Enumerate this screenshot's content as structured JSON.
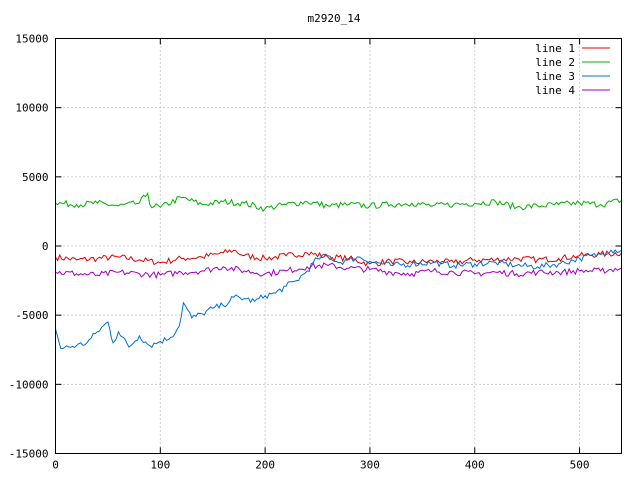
{
  "chart_data": {
    "type": "line",
    "title": "m2920_14",
    "xlabel": "",
    "ylabel": "",
    "xlim": [
      0,
      540
    ],
    "ylim": [
      -15000,
      15000
    ],
    "x_ticks": [
      "0",
      "100",
      "200",
      "300",
      "400",
      "500"
    ],
    "y_ticks": [
      "15000",
      "10000",
      "5000",
      "0",
      "-5000",
      "-10000",
      "-15000"
    ],
    "grid": true,
    "legend_position": "top-right",
    "series": [
      {
        "name": "line 1",
        "color": "#e00000",
        "points": [
          [
            0,
            -800
          ],
          [
            20,
            -1000
          ],
          [
            40,
            -900
          ],
          [
            60,
            -800
          ],
          [
            80,
            -1000
          ],
          [
            100,
            -1200
          ],
          [
            120,
            -900
          ],
          [
            140,
            -800
          ],
          [
            160,
            -500
          ],
          [
            170,
            -300
          ],
          [
            180,
            -700
          ],
          [
            200,
            -900
          ],
          [
            220,
            -700
          ],
          [
            240,
            -500
          ],
          [
            260,
            -800
          ],
          [
            280,
            -900
          ],
          [
            300,
            -1300
          ],
          [
            320,
            -1100
          ],
          [
            340,
            -1200
          ],
          [
            360,
            -1100
          ],
          [
            380,
            -1200
          ],
          [
            400,
            -1000
          ],
          [
            420,
            -1000
          ],
          [
            440,
            -900
          ],
          [
            460,
            -1000
          ],
          [
            480,
            -900
          ],
          [
            500,
            -700
          ],
          [
            520,
            -600
          ],
          [
            540,
            -500
          ]
        ]
      },
      {
        "name": "line 2",
        "color": "#00b000",
        "points": [
          [
            0,
            3100
          ],
          [
            20,
            3000
          ],
          [
            40,
            3100
          ],
          [
            60,
            2900
          ],
          [
            80,
            3100
          ],
          [
            88,
            3800
          ],
          [
            90,
            3000
          ],
          [
            100,
            2800
          ],
          [
            120,
            3500
          ],
          [
            140,
            3000
          ],
          [
            160,
            3200
          ],
          [
            180,
            3100
          ],
          [
            200,
            2700
          ],
          [
            220,
            3000
          ],
          [
            240,
            3200
          ],
          [
            260,
            2900
          ],
          [
            280,
            3000
          ],
          [
            300,
            2900
          ],
          [
            320,
            3000
          ],
          [
            340,
            3100
          ],
          [
            360,
            2900
          ],
          [
            380,
            3000
          ],
          [
            400,
            3100
          ],
          [
            420,
            3200
          ],
          [
            440,
            2800
          ],
          [
            460,
            2900
          ],
          [
            480,
            3000
          ],
          [
            500,
            3100
          ],
          [
            520,
            3000
          ],
          [
            540,
            3300
          ]
        ]
      },
      {
        "name": "line 3",
        "color": "#0070d0",
        "points": [
          [
            0,
            -6000
          ],
          [
            5,
            -7400
          ],
          [
            20,
            -7200
          ],
          [
            30,
            -7000
          ],
          [
            40,
            -6200
          ],
          [
            50,
            -5500
          ],
          [
            55,
            -7000
          ],
          [
            60,
            -6200
          ],
          [
            70,
            -7300
          ],
          [
            80,
            -6500
          ],
          [
            90,
            -7200
          ],
          [
            100,
            -6900
          ],
          [
            110,
            -6600
          ],
          [
            118,
            -5800
          ],
          [
            122,
            -4100
          ],
          [
            130,
            -5200
          ],
          [
            140,
            -4900
          ],
          [
            150,
            -4500
          ],
          [
            160,
            -4300
          ],
          [
            170,
            -3700
          ],
          [
            180,
            -3800
          ],
          [
            190,
            -4000
          ],
          [
            200,
            -3600
          ],
          [
            210,
            -3400
          ],
          [
            220,
            -2900
          ],
          [
            230,
            -2500
          ],
          [
            240,
            -1800
          ],
          [
            250,
            -900
          ],
          [
            260,
            -700
          ],
          [
            270,
            -1200
          ],
          [
            280,
            -1000
          ],
          [
            290,
            -800
          ],
          [
            300,
            -1100
          ],
          [
            320,
            -1400
          ],
          [
            340,
            -1300
          ],
          [
            360,
            -1200
          ],
          [
            380,
            -1400
          ],
          [
            400,
            -1300
          ],
          [
            420,
            -1200
          ],
          [
            440,
            -1400
          ],
          [
            460,
            -1500
          ],
          [
            480,
            -1300
          ],
          [
            500,
            -900
          ],
          [
            520,
            -600
          ],
          [
            530,
            -300
          ],
          [
            540,
            -300
          ]
        ]
      },
      {
        "name": "line 4",
        "color": "#a000c0",
        "points": [
          [
            0,
            -1900
          ],
          [
            20,
            -2000
          ],
          [
            40,
            -2100
          ],
          [
            60,
            -1900
          ],
          [
            80,
            -2000
          ],
          [
            100,
            -2100
          ],
          [
            120,
            -1900
          ],
          [
            140,
            -1800
          ],
          [
            160,
            -1500
          ],
          [
            180,
            -1800
          ],
          [
            200,
            -2000
          ],
          [
            220,
            -1800
          ],
          [
            240,
            -1500
          ],
          [
            260,
            -1400
          ],
          [
            280,
            -1600
          ],
          [
            300,
            -1700
          ],
          [
            320,
            -1900
          ],
          [
            340,
            -2000
          ],
          [
            360,
            -1800
          ],
          [
            380,
            -1900
          ],
          [
            400,
            -2000
          ],
          [
            420,
            -1900
          ],
          [
            440,
            -2000
          ],
          [
            460,
            -1900
          ],
          [
            480,
            -1900
          ],
          [
            500,
            -1800
          ],
          [
            520,
            -1800
          ],
          [
            540,
            -1600
          ]
        ]
      }
    ]
  }
}
